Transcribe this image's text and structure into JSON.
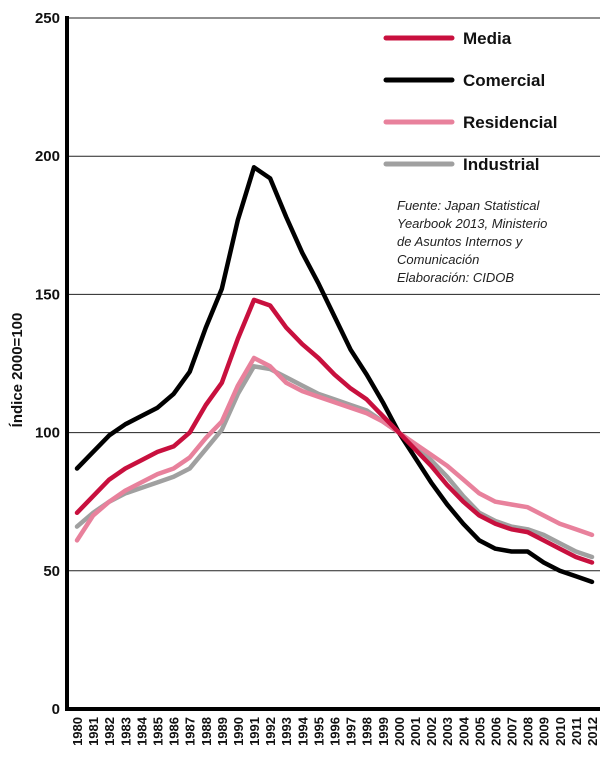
{
  "chart_data": {
    "type": "line",
    "ylabel": "Índice 2000=100",
    "xlabel": "",
    "ylim": [
      0,
      250
    ],
    "yticks": [
      0,
      50,
      100,
      150,
      200,
      250
    ],
    "x": [
      "1980",
      "1981",
      "1982",
      "1983",
      "1984",
      "1985",
      "1986",
      "1987",
      "1988",
      "1989",
      "1990",
      "1991",
      "1992",
      "1993",
      "1994",
      "1995",
      "1996",
      "1997",
      "1998",
      "1999",
      "2000",
      "2001",
      "2002",
      "2003",
      "2004",
      "2005",
      "2006",
      "2007",
      "2008",
      "2009",
      "2010",
      "2011",
      "2012"
    ],
    "series": [
      {
        "name": "Media",
        "color": "#c8103e",
        "values": [
          71,
          77,
          83,
          87,
          90,
          93,
          95,
          100,
          110,
          118,
          134,
          148,
          146,
          138,
          132,
          127,
          121,
          116,
          112,
          106,
          100,
          94,
          88,
          81,
          75,
          70,
          67,
          65,
          64,
          61,
          58,
          55,
          53
        ]
      },
      {
        "name": "Comercial",
        "color": "#000000",
        "values": [
          87,
          93,
          99,
          103,
          106,
          109,
          114,
          122,
          138,
          152,
          177,
          196,
          192,
          178,
          165,
          154,
          142,
          130,
          121,
          111,
          100,
          91,
          82,
          74,
          67,
          61,
          58,
          57,
          57,
          53,
          50,
          48,
          46
        ]
      },
      {
        "name": "Residencial",
        "color": "#e8819c",
        "values": [
          61,
          70,
          75,
          79,
          82,
          85,
          87,
          91,
          98,
          104,
          117,
          127,
          124,
          118,
          115,
          113,
          111,
          109,
          107,
          104,
          100,
          96,
          92,
          88,
          83,
          78,
          75,
          74,
          73,
          70,
          67,
          65,
          63
        ]
      },
      {
        "name": "Industrial",
        "color": "#a0a0a0",
        "values": [
          66,
          71,
          75,
          78,
          80,
          82,
          84,
          87,
          94,
          101,
          114,
          124,
          123,
          120,
          117,
          114,
          112,
          110,
          108,
          104,
          100,
          95,
          90,
          84,
          77,
          71,
          68,
          66,
          65,
          63,
          60,
          57,
          55
        ]
      }
    ],
    "grid_lines": [
      50,
      100,
      150,
      200,
      250
    ],
    "legend": "top-right",
    "source_text": [
      "Fuente: Japan Statistical",
      "Yearbook 2013, Ministerio",
      "de Asuntos Internos y",
      "Comunicación",
      "Elaboración: CIDOB"
    ]
  }
}
